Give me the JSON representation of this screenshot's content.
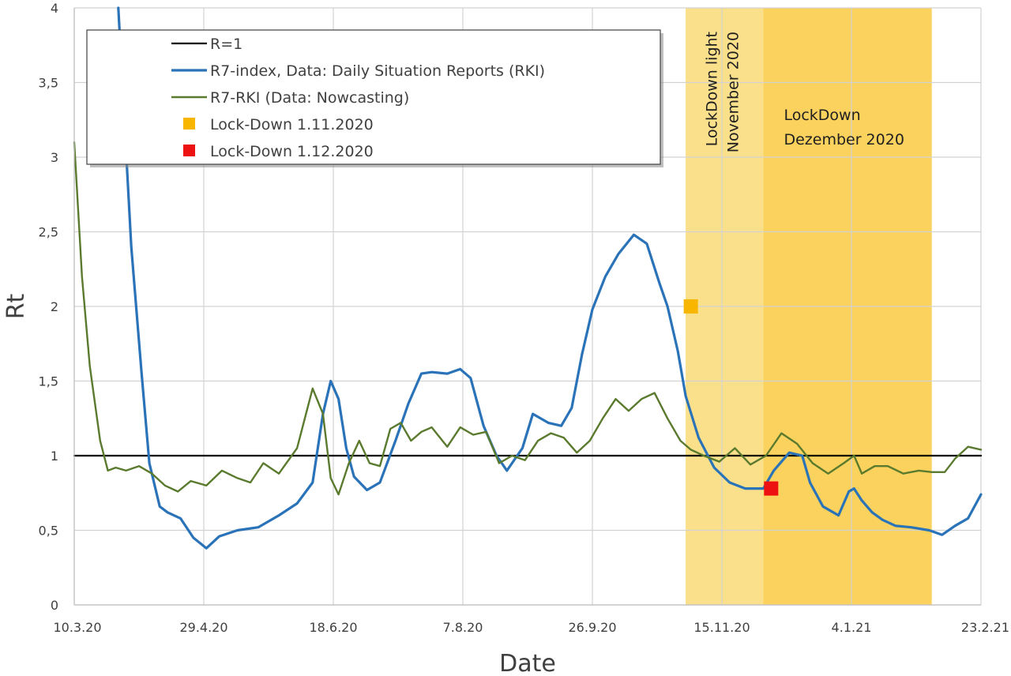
{
  "chart_data": {
    "type": "line",
    "xlabel": "Date",
    "ylabel": "Rt",
    "ylim": [
      0,
      4
    ],
    "xlim": [
      "2020-03-10",
      "2021-02-23"
    ],
    "grid": true,
    "legend_position": "top-left",
    "x_tick_labels": [
      "10.3.20",
      "29.4.20",
      "18.6.20",
      "7.8.20",
      "26.9.20",
      "15.11.20",
      "4.1.21",
      "23.2.21"
    ],
    "y_tick_labels": [
      "0",
      "0,5",
      "1",
      "1,5",
      "2",
      "2,5",
      "3",
      "3,5",
      "4"
    ],
    "regions": [
      {
        "label": "LockDown light\nNovember 2020",
        "start": "2020-11-01",
        "end": "2020-12-01",
        "color": "#fbe08c"
      },
      {
        "label": "LockDown\nDezember 2020",
        "start": "2020-12-01",
        "end": "2021-02-04",
        "color": "#fbd25d"
      }
    ],
    "series": [
      {
        "name": "R=1",
        "color": "#000000",
        "x": [
          "2020-03-10",
          "2021-02-23"
        ],
        "values": [
          1,
          1
        ]
      },
      {
        "name": "R7-index, Data: Daily Situation Reports (RKI)",
        "color": "#2a73b8",
        "x": [
          "2020-03-27",
          "2020-04-01",
          "2020-04-05",
          "2020-04-08",
          "2020-04-12",
          "2020-04-15",
          "2020-04-20",
          "2020-04-25",
          "2020-04-30",
          "2020-05-05",
          "2020-05-12",
          "2020-05-20",
          "2020-05-28",
          "2020-06-04",
          "2020-06-10",
          "2020-06-14",
          "2020-06-17",
          "2020-06-20",
          "2020-06-23",
          "2020-06-26",
          "2020-07-01",
          "2020-07-06",
          "2020-07-12",
          "2020-07-17",
          "2020-07-22",
          "2020-07-26",
          "2020-08-01",
          "2020-08-06",
          "2020-08-10",
          "2020-08-15",
          "2020-08-20",
          "2020-08-24",
          "2020-08-30",
          "2020-09-03",
          "2020-09-09",
          "2020-09-14",
          "2020-09-18",
          "2020-09-22",
          "2020-09-26",
          "2020-10-01",
          "2020-10-06",
          "2020-10-12",
          "2020-10-17",
          "2020-10-22",
          "2020-10-25",
          "2020-10-29",
          "2020-11-01",
          "2020-11-06",
          "2020-11-12",
          "2020-11-18",
          "2020-11-24",
          "2020-12-01",
          "2020-12-05",
          "2020-12-11",
          "2020-12-16",
          "2020-12-19",
          "2020-12-24",
          "2020-12-30",
          "2021-01-03",
          "2021-01-05",
          "2021-01-08",
          "2021-01-12",
          "2021-01-16",
          "2021-01-21",
          "2021-01-27",
          "2021-02-03",
          "2021-02-08",
          "2021-02-13",
          "2021-02-18",
          "2021-02-23"
        ],
        "values": [
          4.0,
          2.4,
          1.55,
          0.95,
          0.66,
          0.62,
          0.58,
          0.45,
          0.38,
          0.46,
          0.5,
          0.52,
          0.6,
          0.68,
          0.82,
          1.28,
          1.5,
          1.38,
          1.05,
          0.86,
          0.77,
          0.82,
          1.1,
          1.35,
          1.55,
          1.56,
          1.55,
          1.58,
          1.52,
          1.2,
          1.0,
          0.9,
          1.05,
          1.28,
          1.22,
          1.2,
          1.32,
          1.68,
          1.98,
          2.2,
          2.35,
          2.48,
          2.42,
          2.15,
          2.0,
          1.7,
          1.4,
          1.12,
          0.92,
          0.82,
          0.78,
          0.78,
          0.9,
          1.02,
          1.0,
          0.82,
          0.66,
          0.6,
          0.76,
          0.78,
          0.7,
          0.62,
          0.57,
          0.53,
          0.52,
          0.5,
          0.47,
          0.53,
          0.58,
          0.74
        ]
      },
      {
        "name": "R7-RKI (Data: Nowcasting)",
        "color": "#5a7a2e",
        "x": [
          "2020-03-10",
          "2020-03-13",
          "2020-03-16",
          "2020-03-20",
          "2020-03-23",
          "2020-03-26",
          "2020-03-30",
          "2020-04-04",
          "2020-04-09",
          "2020-04-14",
          "2020-04-19",
          "2020-04-24",
          "2020-04-30",
          "2020-05-06",
          "2020-05-12",
          "2020-05-17",
          "2020-05-22",
          "2020-05-28",
          "2020-06-04",
          "2020-06-10",
          "2020-06-14",
          "2020-06-17",
          "2020-06-20",
          "2020-06-24",
          "2020-06-28",
          "2020-07-02",
          "2020-07-06",
          "2020-07-10",
          "2020-07-14",
          "2020-07-18",
          "2020-07-22",
          "2020-07-26",
          "2020-08-01",
          "2020-08-06",
          "2020-08-11",
          "2020-08-16",
          "2020-08-21",
          "2020-08-26",
          "2020-08-31",
          "2020-09-05",
          "2020-09-10",
          "2020-09-15",
          "2020-09-20",
          "2020-09-25",
          "2020-09-30",
          "2020-10-05",
          "2020-10-10",
          "2020-10-15",
          "2020-10-20",
          "2020-10-25",
          "2020-10-30",
          "2020-11-03",
          "2020-11-08",
          "2020-11-14",
          "2020-11-20",
          "2020-11-26",
          "2020-12-02",
          "2020-12-08",
          "2020-12-14",
          "2020-12-20",
          "2020-12-26",
          "2021-01-01",
          "2021-01-05",
          "2021-01-08",
          "2021-01-13",
          "2021-01-18",
          "2021-01-24",
          "2021-01-30",
          "2021-02-04",
          "2021-02-09",
          "2021-02-13",
          "2021-02-18",
          "2021-02-23"
        ],
        "values": [
          3.1,
          2.2,
          1.6,
          1.1,
          0.9,
          0.92,
          0.9,
          0.93,
          0.88,
          0.8,
          0.76,
          0.83,
          0.8,
          0.9,
          0.85,
          0.82,
          0.95,
          0.88,
          1.05,
          1.45,
          1.28,
          0.85,
          0.74,
          0.95,
          1.1,
          0.95,
          0.93,
          1.18,
          1.22,
          1.1,
          1.16,
          1.19,
          1.06,
          1.19,
          1.14,
          1.16,
          0.95,
          1.0,
          0.97,
          1.1,
          1.15,
          1.12,
          1.02,
          1.1,
          1.25,
          1.38,
          1.3,
          1.38,
          1.42,
          1.25,
          1.1,
          1.04,
          1.0,
          0.96,
          1.05,
          0.94,
          1.0,
          1.15,
          1.08,
          0.95,
          0.88,
          0.95,
          1.0,
          0.88,
          0.93,
          0.93,
          0.88,
          0.9,
          0.89,
          0.89,
          0.98,
          1.06,
          1.04
        ]
      }
    ],
    "markers": [
      {
        "name": "Lock-Down 1.11.2020",
        "color": "#f9b600",
        "x": "2020-11-03",
        "y": 2.0
      },
      {
        "name": "Lock-Down 1.12.2020",
        "color": "#ee1111",
        "x": "2020-12-04",
        "y": 0.78
      }
    ]
  }
}
